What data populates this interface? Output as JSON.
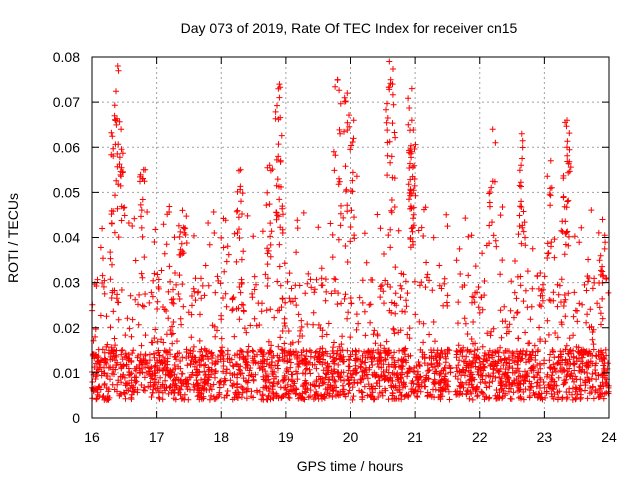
{
  "chart_data": {
    "type": "scatter",
    "title": "Day 073 of 2019, Rate Of TEC Index for receiver cn15",
    "xlabel": "GPS time / hours",
    "ylabel": "ROTI / TECUs",
    "xlim": [
      16,
      24
    ],
    "ylim": [
      0,
      0.08
    ],
    "xticks": [
      "16",
      "17",
      "18",
      "19",
      "20",
      "21",
      "22",
      "23",
      "24"
    ],
    "xtick_values": [
      16,
      17,
      18,
      19,
      20,
      21,
      22,
      23,
      24
    ],
    "yticks": [
      "0",
      "0.01",
      "0.02",
      "0.03",
      "0.04",
      "0.05",
      "0.06",
      "0.07",
      "0.08"
    ],
    "ytick_values": [
      0,
      0.01,
      0.02,
      0.03,
      0.04,
      0.05,
      0.06,
      0.07,
      0.08
    ],
    "grid": true,
    "marker": "+",
    "color": "#ff0000",
    "series": [
      {
        "name": "ROTI",
        "gaps": [
          [
            21.55,
            21.62
          ]
        ],
        "baseline_range": [
          0.004,
          0.02
        ],
        "peaks": [
          {
            "x": 16.4,
            "y": 0.078
          },
          {
            "x": 16.35,
            "y": 0.067
          },
          {
            "x": 16.45,
            "y": 0.064
          },
          {
            "x": 16.8,
            "y": 0.055
          },
          {
            "x": 17.4,
            "y": 0.046
          },
          {
            "x": 18.3,
            "y": 0.055
          },
          {
            "x": 18.75,
            "y": 0.056
          },
          {
            "x": 18.9,
            "y": 0.074
          },
          {
            "x": 18.9,
            "y": 0.071
          },
          {
            "x": 19.8,
            "y": 0.075
          },
          {
            "x": 19.95,
            "y": 0.072
          },
          {
            "x": 20.05,
            "y": 0.066
          },
          {
            "x": 20.6,
            "y": 0.079
          },
          {
            "x": 20.65,
            "y": 0.074
          },
          {
            "x": 20.95,
            "y": 0.073
          },
          {
            "x": 20.95,
            "y": 0.066
          },
          {
            "x": 20.95,
            "y": 0.059
          },
          {
            "x": 22.2,
            "y": 0.064
          },
          {
            "x": 22.65,
            "y": 0.063
          },
          {
            "x": 23.35,
            "y": 0.066
          },
          {
            "x": 23.35,
            "y": 0.06
          },
          {
            "x": 23.1,
            "y": 0.057
          },
          {
            "x": 23.9,
            "y": 0.044
          }
        ]
      }
    ]
  }
}
